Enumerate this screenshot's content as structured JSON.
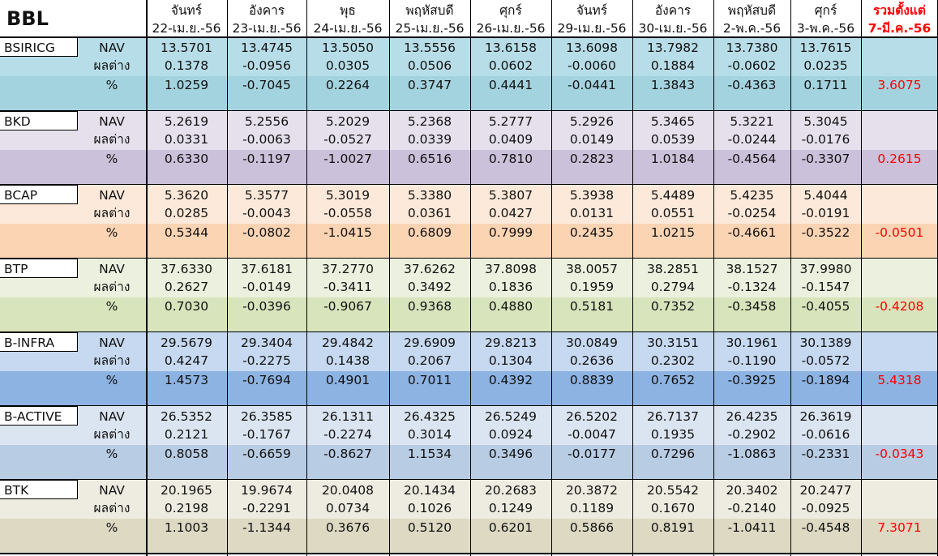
{
  "title": "BBL",
  "headers": [
    {
      "day": "จันทร์",
      "date": "22-เม.ย.-56"
    },
    {
      "day": "อังคาร",
      "date": "23-เม.ย.-56"
    },
    {
      "day": "พุธ",
      "date": "24-เม.ย.-56"
    },
    {
      "day": "พฤหัสบดี",
      "date": "25-เม.ย.-56"
    },
    {
      "day": "ศุกร์",
      "date": "26-เม.ย.-56"
    },
    {
      "day": "จันทร์",
      "date": "29-เม.ย.-56"
    },
    {
      "day": "อังคาร",
      "date": "30-เม.ย.-56"
    },
    {
      "day": "พฤหัสบดี",
      "date": "2-พ.ค.-56"
    },
    {
      "day": "ศุกร์",
      "date": "3-พ.ค.-56"
    }
  ],
  "total_header": {
    "line1": "รวมตั้งแต่",
    "line2": "7-มี.ค.-56"
  },
  "row_labels": {
    "nav": "NAV",
    "diff": "ผลต่าง",
    "pct": "%"
  },
  "funds": [
    {
      "name": "BSIRICG",
      "color_top": "#b7dde8",
      "color_pct": "#a4d3e0",
      "nav": [
        "13.5701",
        "13.4745",
        "13.5050",
        "13.5556",
        "13.6158",
        "13.6098",
        "13.7982",
        "13.7380",
        "13.7615"
      ],
      "diff": [
        "0.1378",
        "-0.0956",
        "0.0305",
        "0.0506",
        "0.0602",
        "-0.0060",
        "0.1884",
        "-0.0602",
        "0.0235"
      ],
      "pct": [
        "1.0259",
        "-0.7045",
        "0.2264",
        "0.3747",
        "0.4441",
        "-0.0441",
        "1.3843",
        "-0.4363",
        "0.1711"
      ],
      "total": "3.6075"
    },
    {
      "name": "BKD",
      "color_top": "#e5e0ec",
      "color_pct": "#ccc1da",
      "nav": [
        "5.2619",
        "5.2556",
        "5.2029",
        "5.2368",
        "5.2777",
        "5.2926",
        "5.3465",
        "5.3221",
        "5.3045"
      ],
      "diff": [
        "0.0331",
        "-0.0063",
        "-0.0527",
        "0.0339",
        "0.0409",
        "0.0149",
        "0.0539",
        "-0.0244",
        "-0.0176"
      ],
      "pct": [
        "0.6330",
        "-0.1197",
        "-1.0027",
        "0.6516",
        "0.7810",
        "0.2823",
        "1.0184",
        "-0.4564",
        "-0.3307"
      ],
      "total": "0.2615"
    },
    {
      "name": "BCAP",
      "color_top": "#fde9d9",
      "color_pct": "#fbd4b4",
      "nav": [
        "5.3620",
        "5.3577",
        "5.3019",
        "5.3380",
        "5.3807",
        "5.3938",
        "5.4489",
        "5.4235",
        "5.4044"
      ],
      "diff": [
        "0.0285",
        "-0.0043",
        "-0.0558",
        "0.0361",
        "0.0427",
        "0.0131",
        "0.0551",
        "-0.0254",
        "-0.0191"
      ],
      "pct": [
        "0.5344",
        "-0.0802",
        "-1.0415",
        "0.6809",
        "0.7999",
        "0.2435",
        "1.0215",
        "-0.4661",
        "-0.3522"
      ],
      "total": "-0.0501"
    },
    {
      "name": "BTP",
      "color_top": "#ebf1de",
      "color_pct": "#d7e4bc",
      "nav": [
        "37.6330",
        "37.6181",
        "37.2770",
        "37.6262",
        "37.8098",
        "38.0057",
        "38.2851",
        "38.1527",
        "37.9980"
      ],
      "diff": [
        "0.2627",
        "-0.0149",
        "-0.3411",
        "0.3492",
        "0.1836",
        "0.1959",
        "0.2794",
        "-0.1324",
        "-0.1547"
      ],
      "pct": [
        "0.7030",
        "-0.0396",
        "-0.9067",
        "0.9368",
        "0.4880",
        "0.5181",
        "0.7352",
        "-0.3458",
        "-0.4055"
      ],
      "total": "-0.4208"
    },
    {
      "name": "B-INFRA",
      "color_top": "#c6d9f0",
      "color_pct": "#8db3e2",
      "nav": [
        "29.5679",
        "29.3404",
        "29.4842",
        "29.6909",
        "29.8213",
        "30.0849",
        "30.3151",
        "30.1961",
        "30.1389"
      ],
      "diff": [
        "0.4247",
        "-0.2275",
        "0.1438",
        "0.2067",
        "0.1304",
        "0.2636",
        "0.2302",
        "-0.1190",
        "-0.0572"
      ],
      "pct": [
        "1.4573",
        "-0.7694",
        "0.4901",
        "0.7011",
        "0.4392",
        "0.8839",
        "0.7652",
        "-0.3925",
        "-0.1894"
      ],
      "total": "5.4318"
    },
    {
      "name": "B-ACTIVE",
      "color_top": "#dbe5f1",
      "color_pct": "#b8cce4",
      "nav": [
        "26.5352",
        "26.3585",
        "26.1311",
        "26.4325",
        "26.5249",
        "26.5202",
        "26.7137",
        "26.4235",
        "26.3619"
      ],
      "diff": [
        "0.2121",
        "-0.1767",
        "-0.2274",
        "0.3014",
        "0.0924",
        "-0.0047",
        "0.1935",
        "-0.2902",
        "-0.0616"
      ],
      "pct": [
        "0.8058",
        "-0.6659",
        "-0.8627",
        "1.1534",
        "0.3496",
        "-0.0177",
        "0.7296",
        "-1.0863",
        "-0.2331"
      ],
      "total": "-0.0343"
    },
    {
      "name": "BTK",
      "color_top": "#eeece1",
      "color_pct": "#ddd9c3",
      "nav": [
        "20.1965",
        "19.9674",
        "20.0408",
        "20.1434",
        "20.2683",
        "20.3872",
        "20.5542",
        "20.3402",
        "20.2477"
      ],
      "diff": [
        "0.2198",
        "-0.2291",
        "0.0734",
        "0.1026",
        "0.1249",
        "0.1189",
        "0.1670",
        "-0.2140",
        "-0.0925"
      ],
      "pct": [
        "1.1003",
        "-1.1344",
        "0.3676",
        "0.5120",
        "0.6201",
        "0.5866",
        "0.8191",
        "-1.0411",
        "-0.4548"
      ],
      "total": "7.3071"
    }
  ],
  "total_color": "#ff0000"
}
